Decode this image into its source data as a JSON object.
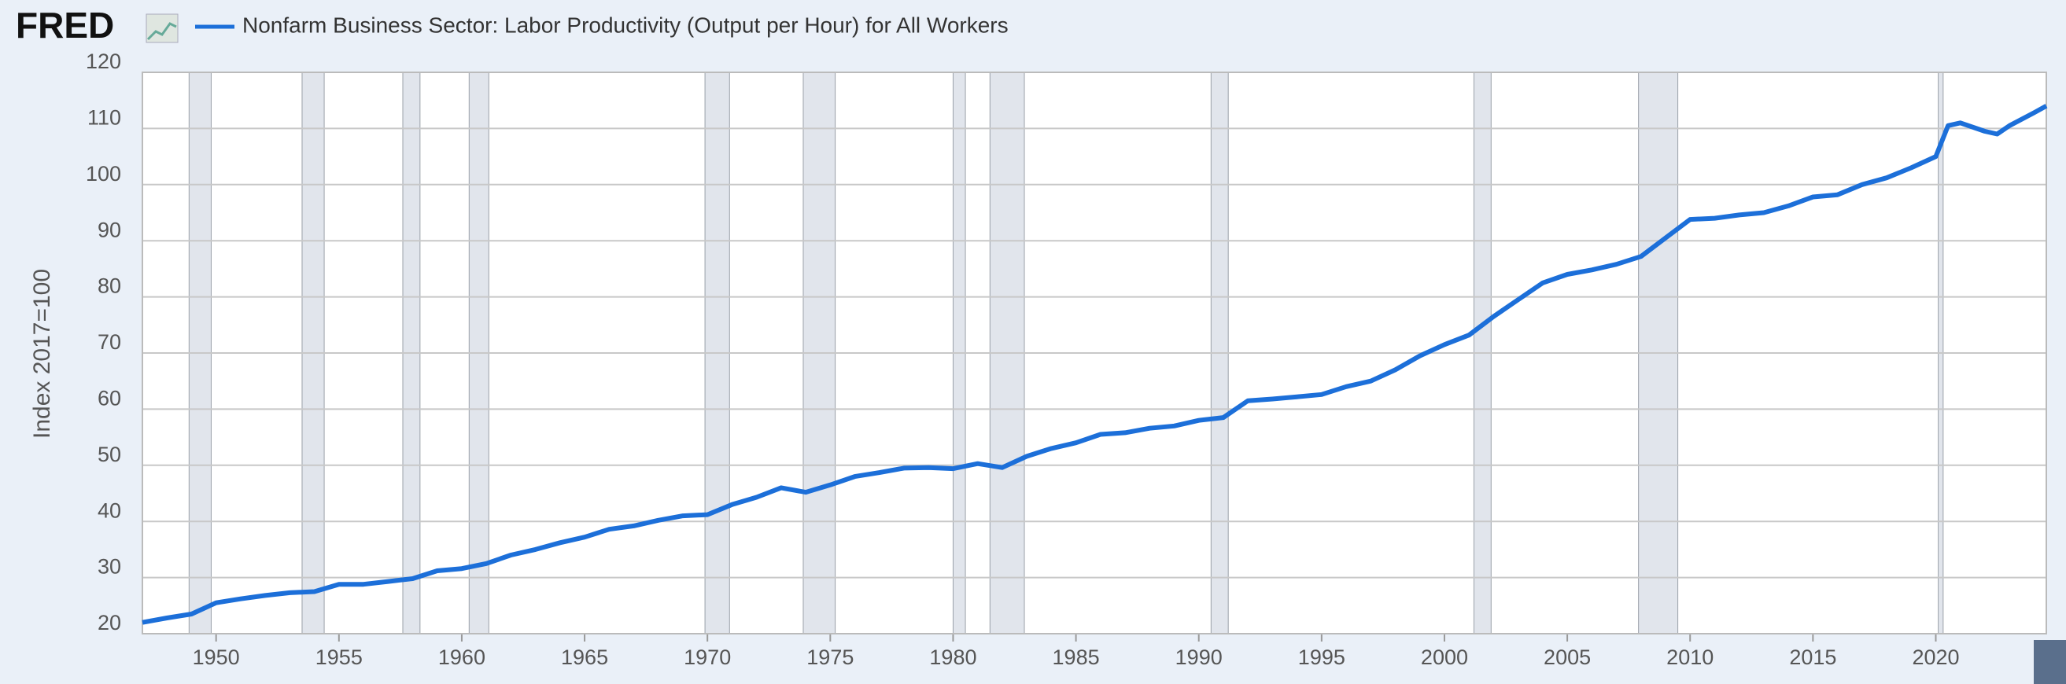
{
  "brand": "FRED",
  "chart_data": {
    "type": "line",
    "title": "Nonfarm Business Sector: Labor Productivity (Output per Hour) for All Workers",
    "y_label": "Index 2017=100",
    "x": [
      1947,
      1948,
      1949,
      1950,
      1951,
      1952,
      1953,
      1954,
      1955,
      1956,
      1957,
      1958,
      1959,
      1960,
      1961,
      1962,
      1963,
      1964,
      1965,
      1966,
      1967,
      1968,
      1969,
      1970,
      1971,
      1972,
      1973,
      1974,
      1975,
      1976,
      1977,
      1978,
      1979,
      1980,
      1981,
      1982,
      1983,
      1984,
      1985,
      1986,
      1987,
      1988,
      1989,
      1990,
      1991,
      1992,
      1993,
      1994,
      1995,
      1996,
      1997,
      1998,
      1999,
      2000,
      2001,
      2002,
      2003,
      2004,
      2005,
      2006,
      2007,
      2008,
      2009,
      2010,
      2011,
      2012,
      2013,
      2014,
      2015,
      2016,
      2017,
      2018,
      2019,
      2020,
      2020.5,
      2021,
      2022,
      2022.5,
      2023,
      2024,
      2024.5
    ],
    "series": [
      {
        "name": "Nonfarm Business Sector: Labor Productivity (Output per Hour) for All Workers",
        "color": "#1c6fd9",
        "values": [
          22.0,
          22.8,
          23.5,
          25.5,
          26.2,
          26.8,
          27.3,
          27.5,
          28.8,
          28.8,
          29.3,
          29.8,
          31.2,
          31.6,
          32.5,
          34.0,
          35.0,
          36.2,
          37.2,
          38.6,
          39.2,
          40.2,
          41.0,
          41.2,
          43.0,
          44.3,
          46.0,
          45.2,
          46.5,
          48.0,
          48.7,
          49.5,
          49.6,
          49.4,
          50.3,
          49.6,
          51.6,
          53.0,
          54.0,
          55.5,
          55.8,
          56.6,
          57.0,
          58.0,
          58.5,
          61.5,
          61.8,
          62.2,
          62.6,
          64.0,
          65.0,
          67.0,
          69.5,
          71.5,
          73.2,
          76.5,
          79.5,
          82.5,
          84.0,
          84.8,
          85.8,
          87.2,
          90.5,
          93.8,
          94.0,
          94.6,
          95.0,
          96.2,
          97.8,
          98.2,
          100.0,
          101.2,
          103.0,
          105.0,
          110.5,
          111.0,
          109.5,
          109.0,
          110.5,
          112.8,
          114.0
        ]
      }
    ],
    "recessions": [
      [
        1948.9,
        1949.8
      ],
      [
        1953.5,
        1954.4
      ],
      [
        1957.6,
        1958.3
      ],
      [
        1960.3,
        1961.1
      ],
      [
        1969.9,
        1970.9
      ],
      [
        1973.9,
        1975.2
      ],
      [
        1980.0,
        1980.5
      ],
      [
        1981.5,
        1982.9
      ],
      [
        1990.5,
        1991.2
      ],
      [
        2001.2,
        2001.9
      ],
      [
        2007.9,
        2009.5
      ],
      [
        2020.1,
        2020.3
      ]
    ],
    "xlim": [
      1947,
      2024.5
    ],
    "ylim": [
      20,
      120
    ],
    "xticks": [
      1950,
      1955,
      1960,
      1965,
      1970,
      1975,
      1980,
      1985,
      1990,
      1995,
      2000,
      2005,
      2010,
      2015,
      2020
    ],
    "yticks": [
      20,
      30,
      40,
      50,
      60,
      70,
      80,
      90,
      100,
      110,
      120
    ],
    "grid": true
  }
}
